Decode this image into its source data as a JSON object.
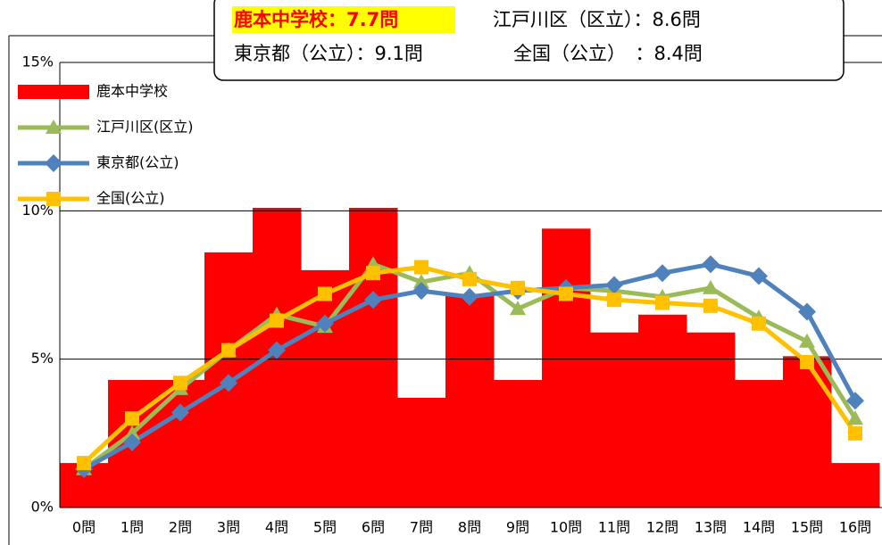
{
  "chart_data": {
    "type": "bar_line",
    "annotations": [
      "鹿本中学校：7.7問",
      "江戸川区（区立）：8.6問",
      "東京都（公立）：9.1問",
      "全国（公立）　：8.4問"
    ],
    "categories": [
      "0問",
      "1問",
      "2問",
      "3問",
      "4問",
      "5問",
      "6問",
      "7問",
      "8問",
      "9問",
      "10問",
      "11問",
      "12問",
      "13問",
      "14問",
      "15問",
      "16問"
    ],
    "series": [
      {
        "name": "鹿本中学校",
        "type": "bar",
        "color": "#ff0000",
        "values": [
          1.5,
          4.3,
          4.3,
          8.6,
          10.1,
          8.0,
          10.1,
          3.7,
          7.2,
          4.3,
          9.4,
          5.9,
          6.5,
          5.9,
          4.3,
          5.1,
          1.5
        ]
      },
      {
        "name": "江戸川区(区立)",
        "type": "line",
        "marker": "triangle",
        "color": "#9bbb59",
        "values": [
          1.3,
          2.5,
          4.0,
          5.3,
          6.5,
          6.1,
          8.2,
          7.6,
          7.9,
          6.7,
          7.4,
          7.3,
          7.1,
          7.4,
          6.4,
          5.6,
          3.0
        ]
      },
      {
        "name": "東京都(公立)",
        "type": "line",
        "marker": "diamond",
        "color": "#4f81bd",
        "values": [
          1.3,
          2.2,
          3.2,
          4.2,
          5.3,
          6.2,
          7.0,
          7.3,
          7.1,
          7.3,
          7.4,
          7.5,
          7.9,
          8.2,
          7.8,
          6.6,
          3.6
        ]
      },
      {
        "name": "全国(公立)",
        "type": "line",
        "marker": "square",
        "color": "#ffc000",
        "values": [
          1.5,
          3.0,
          4.2,
          5.3,
          6.3,
          7.2,
          7.9,
          8.1,
          7.7,
          7.4,
          7.2,
          7.0,
          6.9,
          6.8,
          6.2,
          4.9,
          2.5
        ]
      }
    ],
    "ylim": [
      0,
      15
    ],
    "yticks": [
      {
        "value": 0,
        "label": "0%"
      },
      {
        "value": 5,
        "label": "5%"
      },
      {
        "value": 10,
        "label": "10%"
      },
      {
        "value": 15,
        "label": "15%"
      }
    ],
    "grid": true
  }
}
